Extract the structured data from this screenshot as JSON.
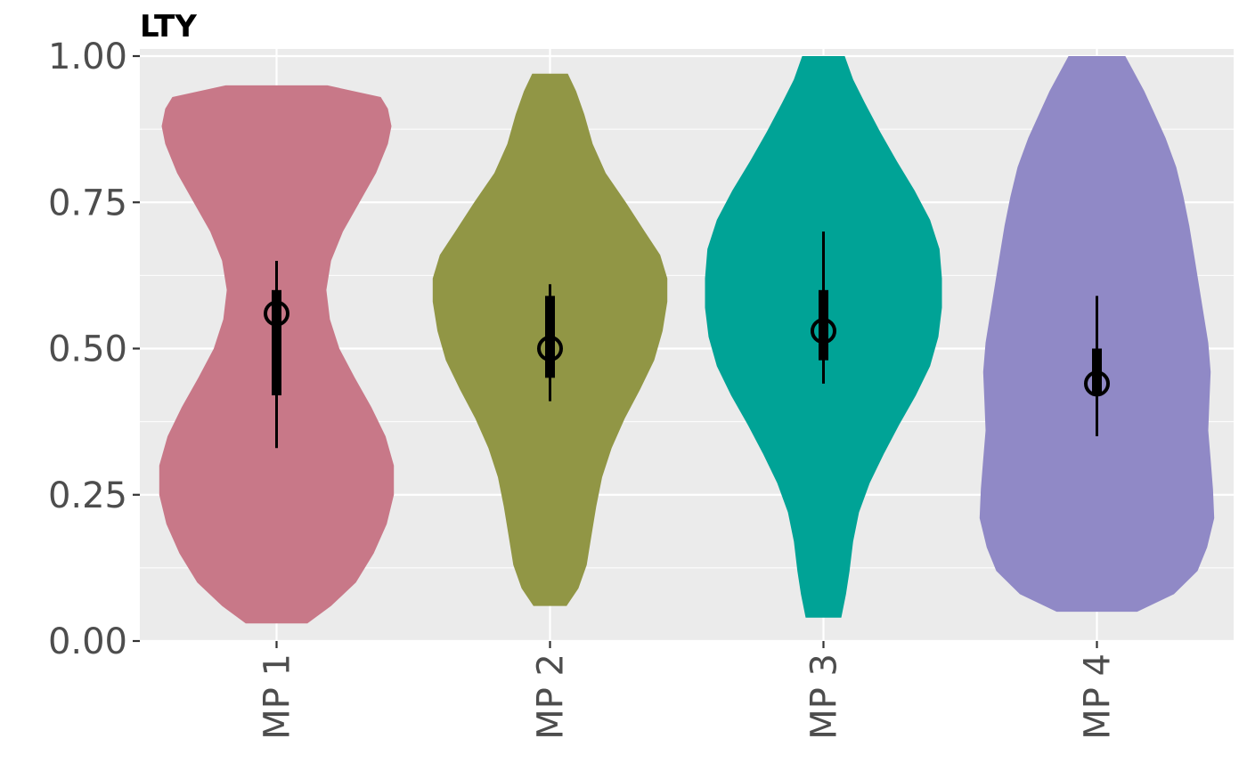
{
  "chart_data": {
    "type": "violin",
    "title": "LTY",
    "xlabel": "",
    "ylabel": "",
    "ylim": [
      0,
      1
    ],
    "y_ticks": [
      "0.00",
      "0.25",
      "0.50",
      "0.75",
      "1.00"
    ],
    "categories": [
      "MP 1",
      "MP 2",
      "MP 3",
      "MP 4"
    ],
    "grid": true,
    "legend": "none",
    "colors": [
      "#c87888",
      "#919645",
      "#00a396",
      "#9089c6"
    ],
    "series": [
      {
        "category": "MP 1",
        "median": 0.56,
        "q1": 0.42,
        "q3": 0.6,
        "whisker_low": 0.33,
        "whisker_high": 0.65,
        "min": 0.03,
        "max": 0.95,
        "density": [
          [
            0.03,
            0.26
          ],
          [
            0.06,
            0.46
          ],
          [
            0.1,
            0.67
          ],
          [
            0.15,
            0.82
          ],
          [
            0.2,
            0.93
          ],
          [
            0.25,
            0.99
          ],
          [
            0.3,
            0.99
          ],
          [
            0.35,
            0.92
          ],
          [
            0.4,
            0.8
          ],
          [
            0.45,
            0.66
          ],
          [
            0.5,
            0.53
          ],
          [
            0.55,
            0.45
          ],
          [
            0.6,
            0.42
          ],
          [
            0.65,
            0.46
          ],
          [
            0.7,
            0.56
          ],
          [
            0.75,
            0.7
          ],
          [
            0.8,
            0.84
          ],
          [
            0.85,
            0.94
          ],
          [
            0.88,
            0.97
          ],
          [
            0.91,
            0.94
          ],
          [
            0.93,
            0.88
          ],
          [
            0.95,
            0.43
          ]
        ]
      },
      {
        "category": "MP 2",
        "median": 0.5,
        "q1": 0.45,
        "q3": 0.59,
        "whisker_low": 0.41,
        "whisker_high": 0.61,
        "min": 0.06,
        "max": 0.97,
        "density": [
          [
            0.06,
            0.14
          ],
          [
            0.09,
            0.24
          ],
          [
            0.13,
            0.31
          ],
          [
            0.18,
            0.35
          ],
          [
            0.23,
            0.39
          ],
          [
            0.28,
            0.44
          ],
          [
            0.33,
            0.52
          ],
          [
            0.38,
            0.63
          ],
          [
            0.43,
            0.76
          ],
          [
            0.48,
            0.88
          ],
          [
            0.53,
            0.95
          ],
          [
            0.58,
            0.99
          ],
          [
            0.62,
            0.99
          ],
          [
            0.66,
            0.93
          ],
          [
            0.7,
            0.8
          ],
          [
            0.75,
            0.64
          ],
          [
            0.8,
            0.47
          ],
          [
            0.85,
            0.36
          ],
          [
            0.9,
            0.29
          ],
          [
            0.94,
            0.22
          ],
          [
            0.97,
            0.15
          ]
        ]
      },
      {
        "category": "MP 3",
        "median": 0.53,
        "q1": 0.48,
        "q3": 0.6,
        "whisker_low": 0.44,
        "whisker_high": 0.7,
        "min": 0.04,
        "max": 1.0,
        "density": [
          [
            0.04,
            0.15
          ],
          [
            0.08,
            0.19
          ],
          [
            0.12,
            0.22
          ],
          [
            0.17,
            0.25
          ],
          [
            0.22,
            0.3
          ],
          [
            0.27,
            0.39
          ],
          [
            0.32,
            0.51
          ],
          [
            0.37,
            0.64
          ],
          [
            0.42,
            0.78
          ],
          [
            0.47,
            0.9
          ],
          [
            0.52,
            0.97
          ],
          [
            0.57,
            1.0
          ],
          [
            0.62,
            1.0
          ],
          [
            0.67,
            0.98
          ],
          [
            0.72,
            0.9
          ],
          [
            0.77,
            0.77
          ],
          [
            0.82,
            0.62
          ],
          [
            0.87,
            0.48
          ],
          [
            0.92,
            0.35
          ],
          [
            0.96,
            0.25
          ],
          [
            1.0,
            0.18
          ]
        ]
      },
      {
        "category": "MP 4",
        "median": 0.44,
        "q1": 0.42,
        "q3": 0.5,
        "whisker_low": 0.35,
        "whisker_high": 0.59,
        "min": 0.05,
        "max": 1.0,
        "density": [
          [
            0.05,
            0.34
          ],
          [
            0.08,
            0.65
          ],
          [
            0.12,
            0.85
          ],
          [
            0.16,
            0.93
          ],
          [
            0.21,
            0.99
          ],
          [
            0.26,
            0.98
          ],
          [
            0.31,
            0.96
          ],
          [
            0.36,
            0.94
          ],
          [
            0.41,
            0.95
          ],
          [
            0.46,
            0.96
          ],
          [
            0.51,
            0.94
          ],
          [
            0.56,
            0.9
          ],
          [
            0.61,
            0.86
          ],
          [
            0.66,
            0.82
          ],
          [
            0.71,
            0.78
          ],
          [
            0.76,
            0.73
          ],
          [
            0.81,
            0.67
          ],
          [
            0.86,
            0.58
          ],
          [
            0.9,
            0.49
          ],
          [
            0.94,
            0.4
          ],
          [
            0.97,
            0.32
          ],
          [
            1.0,
            0.24
          ]
        ]
      }
    ]
  }
}
